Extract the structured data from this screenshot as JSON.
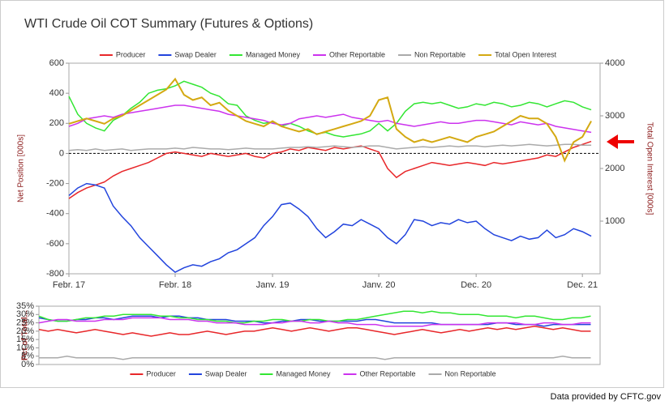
{
  "source": "Data provided by CFTC.gov",
  "chart_data": [
    {
      "type": "line",
      "title": "WTI Crude Oil COT Summary (Futures & Options)",
      "y_label": "Net Position [000s]",
      "y2_label": "Total Open Interest [000s]",
      "legend": "top",
      "zero_line": true,
      "x": [
        "2017-02",
        "2017-03",
        "2017-04",
        "2017-05",
        "2017-06",
        "2017-07",
        "2017-08",
        "2017-09",
        "2017-10",
        "2017-11",
        "2017-12",
        "2018-01",
        "2018-02",
        "2018-03",
        "2018-04",
        "2018-05",
        "2018-06",
        "2018-07",
        "2018-08",
        "2018-09",
        "2018-10",
        "2018-11",
        "2018-12",
        "2019-01",
        "2019-02",
        "2019-03",
        "2019-04",
        "2019-05",
        "2019-06",
        "2019-07",
        "2019-08",
        "2019-09",
        "2019-10",
        "2019-11",
        "2019-12",
        "2020-01",
        "2020-02",
        "2020-03",
        "2020-04",
        "2020-05",
        "2020-06",
        "2020-07",
        "2020-08",
        "2020-09",
        "2020-10",
        "2020-11",
        "2020-12",
        "2021-01",
        "2021-02",
        "2021-03",
        "2021-04",
        "2021-05",
        "2021-06",
        "2021-07",
        "2021-08",
        "2021-09",
        "2021-10",
        "2021-11",
        "2021-12",
        "2022-01"
      ],
      "xlim": [
        "2017-02",
        "2022-02"
      ],
      "xticks": [
        {
          "value": "2017-02",
          "label": "Febr. 17"
        },
        {
          "value": "2018-02",
          "label": "Febr. 18"
        },
        {
          "value": "2019-01",
          "label": "Janv. 19"
        },
        {
          "value": "2020-01",
          "label": "Janv. 20"
        },
        {
          "value": "2020-12",
          "label": "Dec. 20"
        },
        {
          "value": "2021-12",
          "label": "Dec. 21"
        }
      ],
      "ylim": [
        -800,
        600
      ],
      "yticks": [
        -800,
        -600,
        -400,
        -200,
        0,
        200,
        400,
        600
      ],
      "y2lim": [
        0,
        4000
      ],
      "y2ticks": [
        1000,
        2000,
        3000,
        4000
      ],
      "series": [
        {
          "name": "Producer",
          "color": "#e8272a",
          "values": [
            -300,
            -260,
            -230,
            -210,
            -190,
            -150,
            -120,
            -100,
            -80,
            -60,
            -30,
            0,
            10,
            0,
            -10,
            -20,
            0,
            -10,
            -20,
            -10,
            0,
            -20,
            -30,
            0,
            10,
            30,
            20,
            40,
            30,
            20,
            40,
            30,
            40,
            50,
            30,
            10,
            -100,
            -160,
            -120,
            -100,
            -80,
            -60,
            -70,
            -80,
            -70,
            -60,
            -70,
            -80,
            -60,
            -70,
            -60,
            -50,
            -40,
            -30,
            -10,
            -20,
            10,
            40,
            60,
            80
          ]
        },
        {
          "name": "Swap Dealer",
          "color": "#2244dd",
          "values": [
            -280,
            -230,
            -200,
            -210,
            -230,
            -350,
            -420,
            -480,
            -560,
            -620,
            -680,
            -740,
            -790,
            -760,
            -740,
            -750,
            -720,
            -700,
            -660,
            -640,
            -600,
            -560,
            -480,
            -420,
            -340,
            -330,
            -370,
            -420,
            -500,
            -560,
            -520,
            -470,
            -480,
            -440,
            -470,
            -500,
            -560,
            -600,
            -540,
            -440,
            -450,
            -480,
            -460,
            -470,
            -440,
            -460,
            -450,
            -500,
            -540,
            -560,
            -580,
            -550,
            -570,
            -560,
            -510,
            -560,
            -540,
            -500,
            -520,
            -550
          ]
        },
        {
          "name": "Managed Money",
          "color": "#33e633",
          "values": [
            380,
            260,
            200,
            170,
            150,
            220,
            250,
            300,
            340,
            400,
            420,
            430,
            450,
            480,
            460,
            440,
            400,
            380,
            330,
            320,
            250,
            220,
            200,
            210,
            180,
            200,
            180,
            150,
            130,
            140,
            120,
            110,
            120,
            130,
            150,
            200,
            150,
            200,
            280,
            330,
            340,
            330,
            340,
            320,
            300,
            310,
            330,
            320,
            340,
            330,
            310,
            320,
            340,
            330,
            310,
            330,
            350,
            340,
            310,
            290
          ]
        },
        {
          "name": "Other Reportable",
          "color": "#cc33ee",
          "values": [
            180,
            200,
            230,
            240,
            250,
            240,
            260,
            270,
            280,
            290,
            300,
            310,
            320,
            320,
            310,
            300,
            290,
            280,
            260,
            250,
            240,
            230,
            220,
            200,
            190,
            200,
            230,
            240,
            250,
            240,
            250,
            260,
            240,
            230,
            220,
            210,
            220,
            200,
            190,
            180,
            190,
            200,
            210,
            200,
            200,
            210,
            220,
            220,
            210,
            200,
            190,
            210,
            200,
            190,
            200,
            180,
            170,
            160,
            150,
            140
          ]
        },
        {
          "name": "Non Reportable",
          "color": "#aaaaaa",
          "values": [
            20,
            25,
            20,
            30,
            20,
            25,
            30,
            20,
            25,
            30,
            30,
            30,
            35,
            30,
            40,
            35,
            30,
            30,
            25,
            30,
            35,
            30,
            30,
            30,
            35,
            40,
            40,
            45,
            40,
            45,
            50,
            45,
            40,
            45,
            50,
            50,
            40,
            30,
            35,
            40,
            45,
            40,
            45,
            50,
            45,
            50,
            50,
            45,
            50,
            55,
            50,
            55,
            60,
            55,
            50,
            55,
            60,
            60,
            55,
            55
          ]
        },
        {
          "name": "Total Open Interest",
          "color": "#d4a912",
          "axis": "y2",
          "values": [
            2850,
            2900,
            2950,
            2900,
            2850,
            2950,
            3000,
            3100,
            3200,
            3300,
            3400,
            3500,
            3700,
            3400,
            3300,
            3350,
            3200,
            3250,
            3100,
            3000,
            2900,
            2850,
            2800,
            2900,
            2800,
            2750,
            2700,
            2750,
            2650,
            2700,
            2750,
            2800,
            2850,
            2900,
            3000,
            3300,
            3350,
            2750,
            2600,
            2500,
            2550,
            2500,
            2550,
            2600,
            2550,
            2500,
            2600,
            2650,
            2700,
            2800,
            2900,
            3000,
            2950,
            2950,
            2850,
            2600,
            2150,
            2500,
            2600,
            2900
          ]
        }
      ]
    },
    {
      "type": "line",
      "y_label": "Pct of Total...",
      "legend": "bottom",
      "x": [
        "2017-02",
        "2017-03",
        "2017-04",
        "2017-05",
        "2017-06",
        "2017-07",
        "2017-08",
        "2017-09",
        "2017-10",
        "2017-11",
        "2017-12",
        "2018-01",
        "2018-02",
        "2018-03",
        "2018-04",
        "2018-05",
        "2018-06",
        "2018-07",
        "2018-08",
        "2018-09",
        "2018-10",
        "2018-11",
        "2018-12",
        "2019-01",
        "2019-02",
        "2019-03",
        "2019-04",
        "2019-05",
        "2019-06",
        "2019-07",
        "2019-08",
        "2019-09",
        "2019-10",
        "2019-11",
        "2019-12",
        "2020-01",
        "2020-02",
        "2020-03",
        "2020-04",
        "2020-05",
        "2020-06",
        "2020-07",
        "2020-08",
        "2020-09",
        "2020-10",
        "2020-11",
        "2020-12",
        "2021-01",
        "2021-02",
        "2021-03",
        "2021-04",
        "2021-05",
        "2021-06",
        "2021-07",
        "2021-08",
        "2021-09",
        "2021-10",
        "2021-11",
        "2021-12",
        "2022-01"
      ],
      "xlim": [
        "2017-02",
        "2022-02"
      ],
      "ylim": [
        0,
        35
      ],
      "yticks": [
        {
          "value": 0,
          "label": "0%"
        },
        {
          "value": 5,
          "label": "5%"
        },
        {
          "value": 10,
          "label": "10%"
        },
        {
          "value": 15,
          "label": "15%"
        },
        {
          "value": 20,
          "label": "20%"
        },
        {
          "value": 25,
          "label": "25%"
        },
        {
          "value": 30,
          "label": "30%"
        },
        {
          "value": 35,
          "label": "35%"
        }
      ],
      "series": [
        {
          "name": "Producer",
          "color": "#e8272a",
          "values": [
            21,
            20,
            21,
            20,
            19,
            20,
            21,
            20,
            19,
            18,
            19,
            18,
            17,
            18,
            19,
            18,
            18,
            19,
            20,
            19,
            18,
            19,
            20,
            20,
            21,
            22,
            21,
            20,
            21,
            22,
            21,
            20,
            21,
            22,
            22,
            21,
            20,
            19,
            18,
            19,
            20,
            21,
            20,
            19,
            20,
            21,
            20,
            21,
            22,
            21,
            22,
            21,
            22,
            23,
            22,
            21,
            22,
            21,
            20,
            20
          ]
        },
        {
          "name": "Swap Dealer",
          "color": "#2244dd",
          "values": [
            28,
            27,
            26,
            26,
            27,
            27,
            28,
            28,
            27,
            28,
            29,
            29,
            29,
            28,
            29,
            29,
            28,
            28,
            27,
            27,
            27,
            26,
            26,
            26,
            25,
            25,
            26,
            26,
            27,
            27,
            26,
            26,
            26,
            26,
            26,
            27,
            27,
            26,
            25,
            25,
            25,
            25,
            25,
            24,
            24,
            24,
            24,
            24,
            24,
            25,
            25,
            24,
            24,
            24,
            23,
            24,
            24,
            24,
            24,
            24
          ]
        },
        {
          "name": "Managed Money",
          "color": "#33e633",
          "values": [
            29,
            27,
            26,
            26,
            27,
            28,
            28,
            29,
            29,
            30,
            30,
            30,
            30,
            29,
            29,
            28,
            28,
            27,
            27,
            26,
            26,
            25,
            25,
            26,
            26,
            27,
            27,
            26,
            26,
            27,
            27,
            26,
            26,
            27,
            27,
            28,
            29,
            30,
            31,
            32,
            32,
            31,
            32,
            31,
            31,
            30,
            30,
            30,
            29,
            29,
            29,
            28,
            29,
            29,
            28,
            27,
            27,
            28,
            28,
            29
          ]
        },
        {
          "name": "Other Reportable",
          "color": "#cc33ee",
          "values": [
            25,
            26,
            27,
            27,
            26,
            26,
            26,
            27,
            27,
            27,
            28,
            28,
            28,
            28,
            27,
            27,
            27,
            26,
            26,
            25,
            25,
            25,
            24,
            24,
            24,
            25,
            25,
            26,
            26,
            25,
            25,
            26,
            25,
            25,
            24,
            24,
            24,
            23,
            23,
            23,
            23,
            23,
            24,
            24,
            24,
            24,
            24,
            24,
            25,
            25,
            25,
            25,
            24,
            24,
            25,
            25,
            24,
            24,
            25,
            25
          ]
        },
        {
          "name": "Non Reportable",
          "color": "#aaaaaa",
          "values": [
            4,
            4,
            4,
            5,
            4,
            4,
            4,
            4,
            4,
            3,
            4,
            4,
            4,
            4,
            4,
            4,
            4,
            4,
            4,
            4,
            4,
            4,
            4,
            4,
            4,
            4,
            4,
            4,
            4,
            4,
            4,
            4,
            4,
            4,
            4,
            4,
            4,
            3,
            4,
            4,
            4,
            4,
            4,
            4,
            4,
            4,
            4,
            4,
            4,
            4,
            4,
            4,
            4,
            4,
            4,
            4,
            5,
            4,
            4,
            4
          ]
        }
      ]
    }
  ]
}
